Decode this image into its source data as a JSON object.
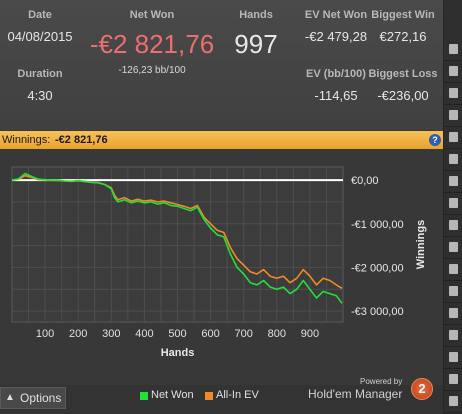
{
  "stats": {
    "date_label": "Date",
    "date_value": "04/08/2015",
    "duration_label": "Duration",
    "duration_value": "4:30",
    "net_won_label": "Net Won",
    "net_won_value": "-€2 821,76",
    "bb100_value": "-126,23 bb/100",
    "hands_label": "Hands",
    "hands_value": "997",
    "ev_net_won_label": "EV Net Won",
    "ev_net_won_value": "-€2 479,28",
    "biggest_win_label": "Biggest Win",
    "biggest_win_value": "€272,16",
    "ev_bb100_label": "EV (bb/100)",
    "ev_bb100_value": "-114,65",
    "biggest_loss_label": "Biggest Loss",
    "biggest_loss_value": "-€236,00"
  },
  "winnings_bar": {
    "label": "Winnings:",
    "value": "-€2 821,76",
    "help_icon": "?"
  },
  "chart_data": {
    "type": "line",
    "xlabel": "Hands",
    "ylabel": "Winnings",
    "xlim": [
      0,
      1000
    ],
    "ylim": [
      -3250,
      300
    ],
    "x_ticks": [
      100,
      200,
      300,
      400,
      500,
      600,
      700,
      800,
      900
    ],
    "x_tick_labels": [
      "100",
      "200",
      "300",
      "400",
      "500",
      "600",
      "700",
      "800",
      "900"
    ],
    "y_ticks": [
      0,
      -1000,
      -2000,
      -3000
    ],
    "y_tick_labels": [
      "€0,00",
      "-€1 000,00",
      "-€2 000,00",
      "-€3 000,00"
    ],
    "grid": true,
    "legend": "bottom",
    "zero_line_color": "#ffffff",
    "series": [
      {
        "name": "Net Won",
        "color": "#22e03a",
        "x": [
          0,
          20,
          40,
          60,
          80,
          100,
          120,
          140,
          160,
          180,
          200,
          220,
          240,
          260,
          280,
          300,
          310,
          320,
          340,
          360,
          380,
          400,
          420,
          440,
          460,
          480,
          500,
          520,
          540,
          560,
          580,
          600,
          620,
          640,
          660,
          680,
          700,
          720,
          740,
          760,
          780,
          800,
          820,
          840,
          860,
          880,
          900,
          920,
          940,
          960,
          980,
          997
        ],
        "y": [
          0,
          30,
          150,
          80,
          20,
          10,
          0,
          0,
          -20,
          -30,
          -10,
          -30,
          -50,
          -60,
          -100,
          -200,
          -400,
          -500,
          -450,
          -520,
          -480,
          -520,
          -500,
          -550,
          -520,
          -580,
          -600,
          -650,
          -700,
          -620,
          -900,
          -1100,
          -1250,
          -1300,
          -1700,
          -2000,
          -2150,
          -2350,
          -2400,
          -2300,
          -2450,
          -2500,
          -2450,
          -2600,
          -2500,
          -2300,
          -2500,
          -2700,
          -2550,
          -2600,
          -2650,
          -2821.76
        ]
      },
      {
        "name": "All-In EV",
        "color": "#f08a28",
        "x": [
          0,
          20,
          40,
          60,
          80,
          100,
          120,
          140,
          160,
          180,
          200,
          220,
          240,
          260,
          280,
          300,
          310,
          320,
          340,
          360,
          380,
          400,
          420,
          440,
          460,
          480,
          500,
          520,
          540,
          560,
          580,
          600,
          620,
          640,
          660,
          680,
          700,
          720,
          740,
          760,
          780,
          800,
          820,
          840,
          860,
          880,
          900,
          920,
          940,
          960,
          980,
          997
        ],
        "y": [
          0,
          20,
          100,
          60,
          10,
          5,
          -5,
          -10,
          -20,
          -25,
          -15,
          -30,
          -50,
          -60,
          -100,
          -180,
          -350,
          -450,
          -400,
          -480,
          -440,
          -480,
          -460,
          -500,
          -480,
          -520,
          -560,
          -600,
          -650,
          -580,
          -850,
          -1000,
          -1150,
          -1200,
          -1550,
          -1800,
          -1950,
          -2100,
          -2150,
          -2050,
          -2200,
          -2250,
          -2200,
          -2350,
          -2250,
          -2050,
          -2200,
          -2400,
          -2250,
          -2300,
          -2400,
          -2479.28
        ]
      }
    ]
  },
  "footer": {
    "options_label": "Options",
    "powered_by": "Powered by",
    "brand": "Hold'em Manager",
    "logo_text": "2"
  }
}
